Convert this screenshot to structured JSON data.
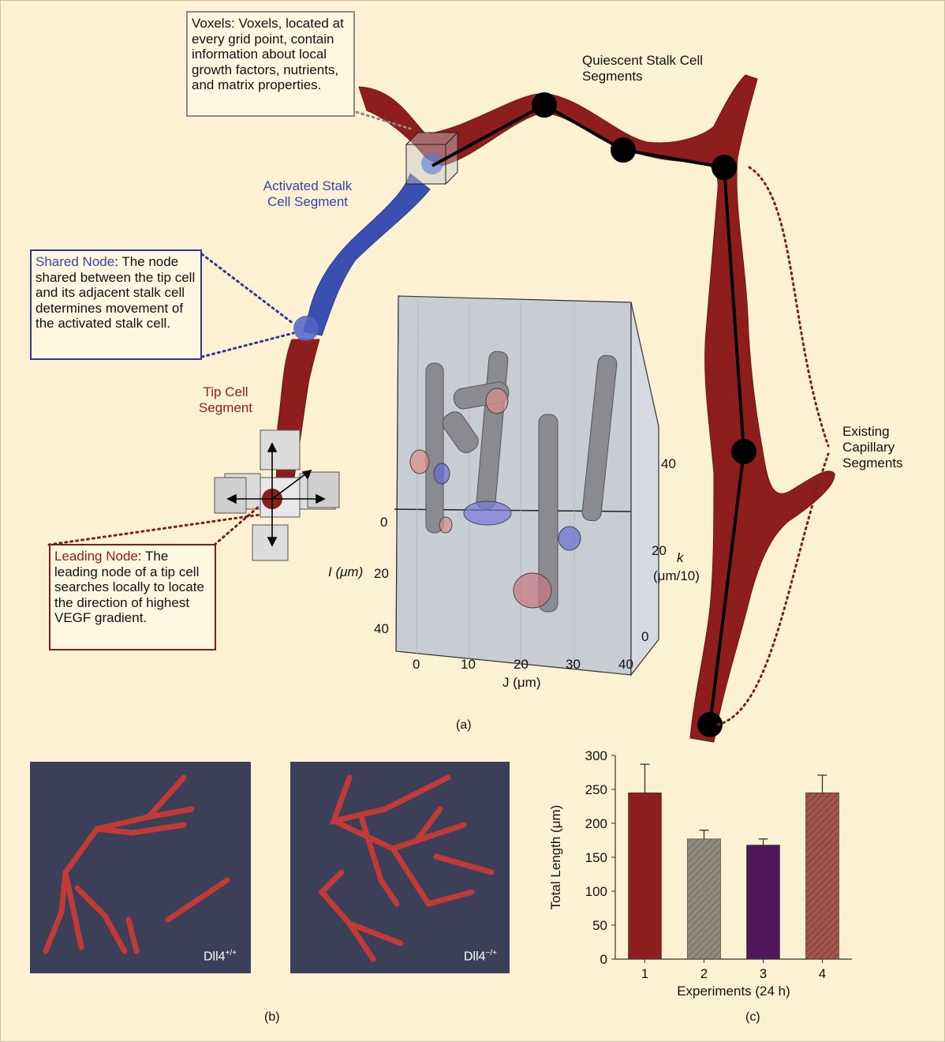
{
  "callouts": {
    "voxels": "Voxels: Voxels, located at every grid point, contain information about local growth factors, nutrients, and matrix properties.",
    "shared_node_title": "Shared Node",
    "shared_node_text": ": The node shared between the tip cell and its adjacent stalk cell determines movement of the activated stalk cell.",
    "leading_node_title": "Leading Node",
    "leading_node_text": ": The leading node of a tip cell searches locally to locate the direction of highest VEGF gradient."
  },
  "labels": {
    "quiescent": "Quiescent Stalk Cell Segments",
    "activated": "Activated Stalk Cell Segment",
    "tip": "Tip Cell Segment",
    "existing": "Existing Capillary Segments"
  },
  "box3d": {
    "i_label": "I (μm)",
    "j_label": "J (μm)",
    "k_label": "k",
    "k_unit": "(μm/10)",
    "i_ticks": [
      "0",
      "20",
      "40"
    ],
    "j_ticks": [
      "0",
      "10",
      "20",
      "30",
      "40"
    ],
    "k_ticks": [
      "40",
      "20",
      "0"
    ]
  },
  "captions": {
    "a": "(a)",
    "b": "(b)",
    "c": "(c)"
  },
  "panels_b": [
    {
      "base": "Dll4",
      "sup": "+/+"
    },
    {
      "base": "Dll4",
      "sup": "−/+"
    }
  ],
  "chart_data": {
    "type": "bar",
    "categories": [
      "1",
      "2",
      "3",
      "4"
    ],
    "values": [
      245,
      177,
      168,
      245
    ],
    "errors": [
      42,
      13,
      9,
      26
    ],
    "xlabel": "Experiments (24 h)",
    "ylabel": "Total Length (μm)",
    "ylim": [
      0,
      300
    ],
    "yticks": [
      0,
      50,
      100,
      150,
      200,
      250,
      300
    ],
    "colors": [
      "#8e1d1d",
      "#8e8a7c",
      "#4e1757",
      "#a3544f"
    ],
    "hatched": [
      false,
      true,
      false,
      true
    ]
  }
}
